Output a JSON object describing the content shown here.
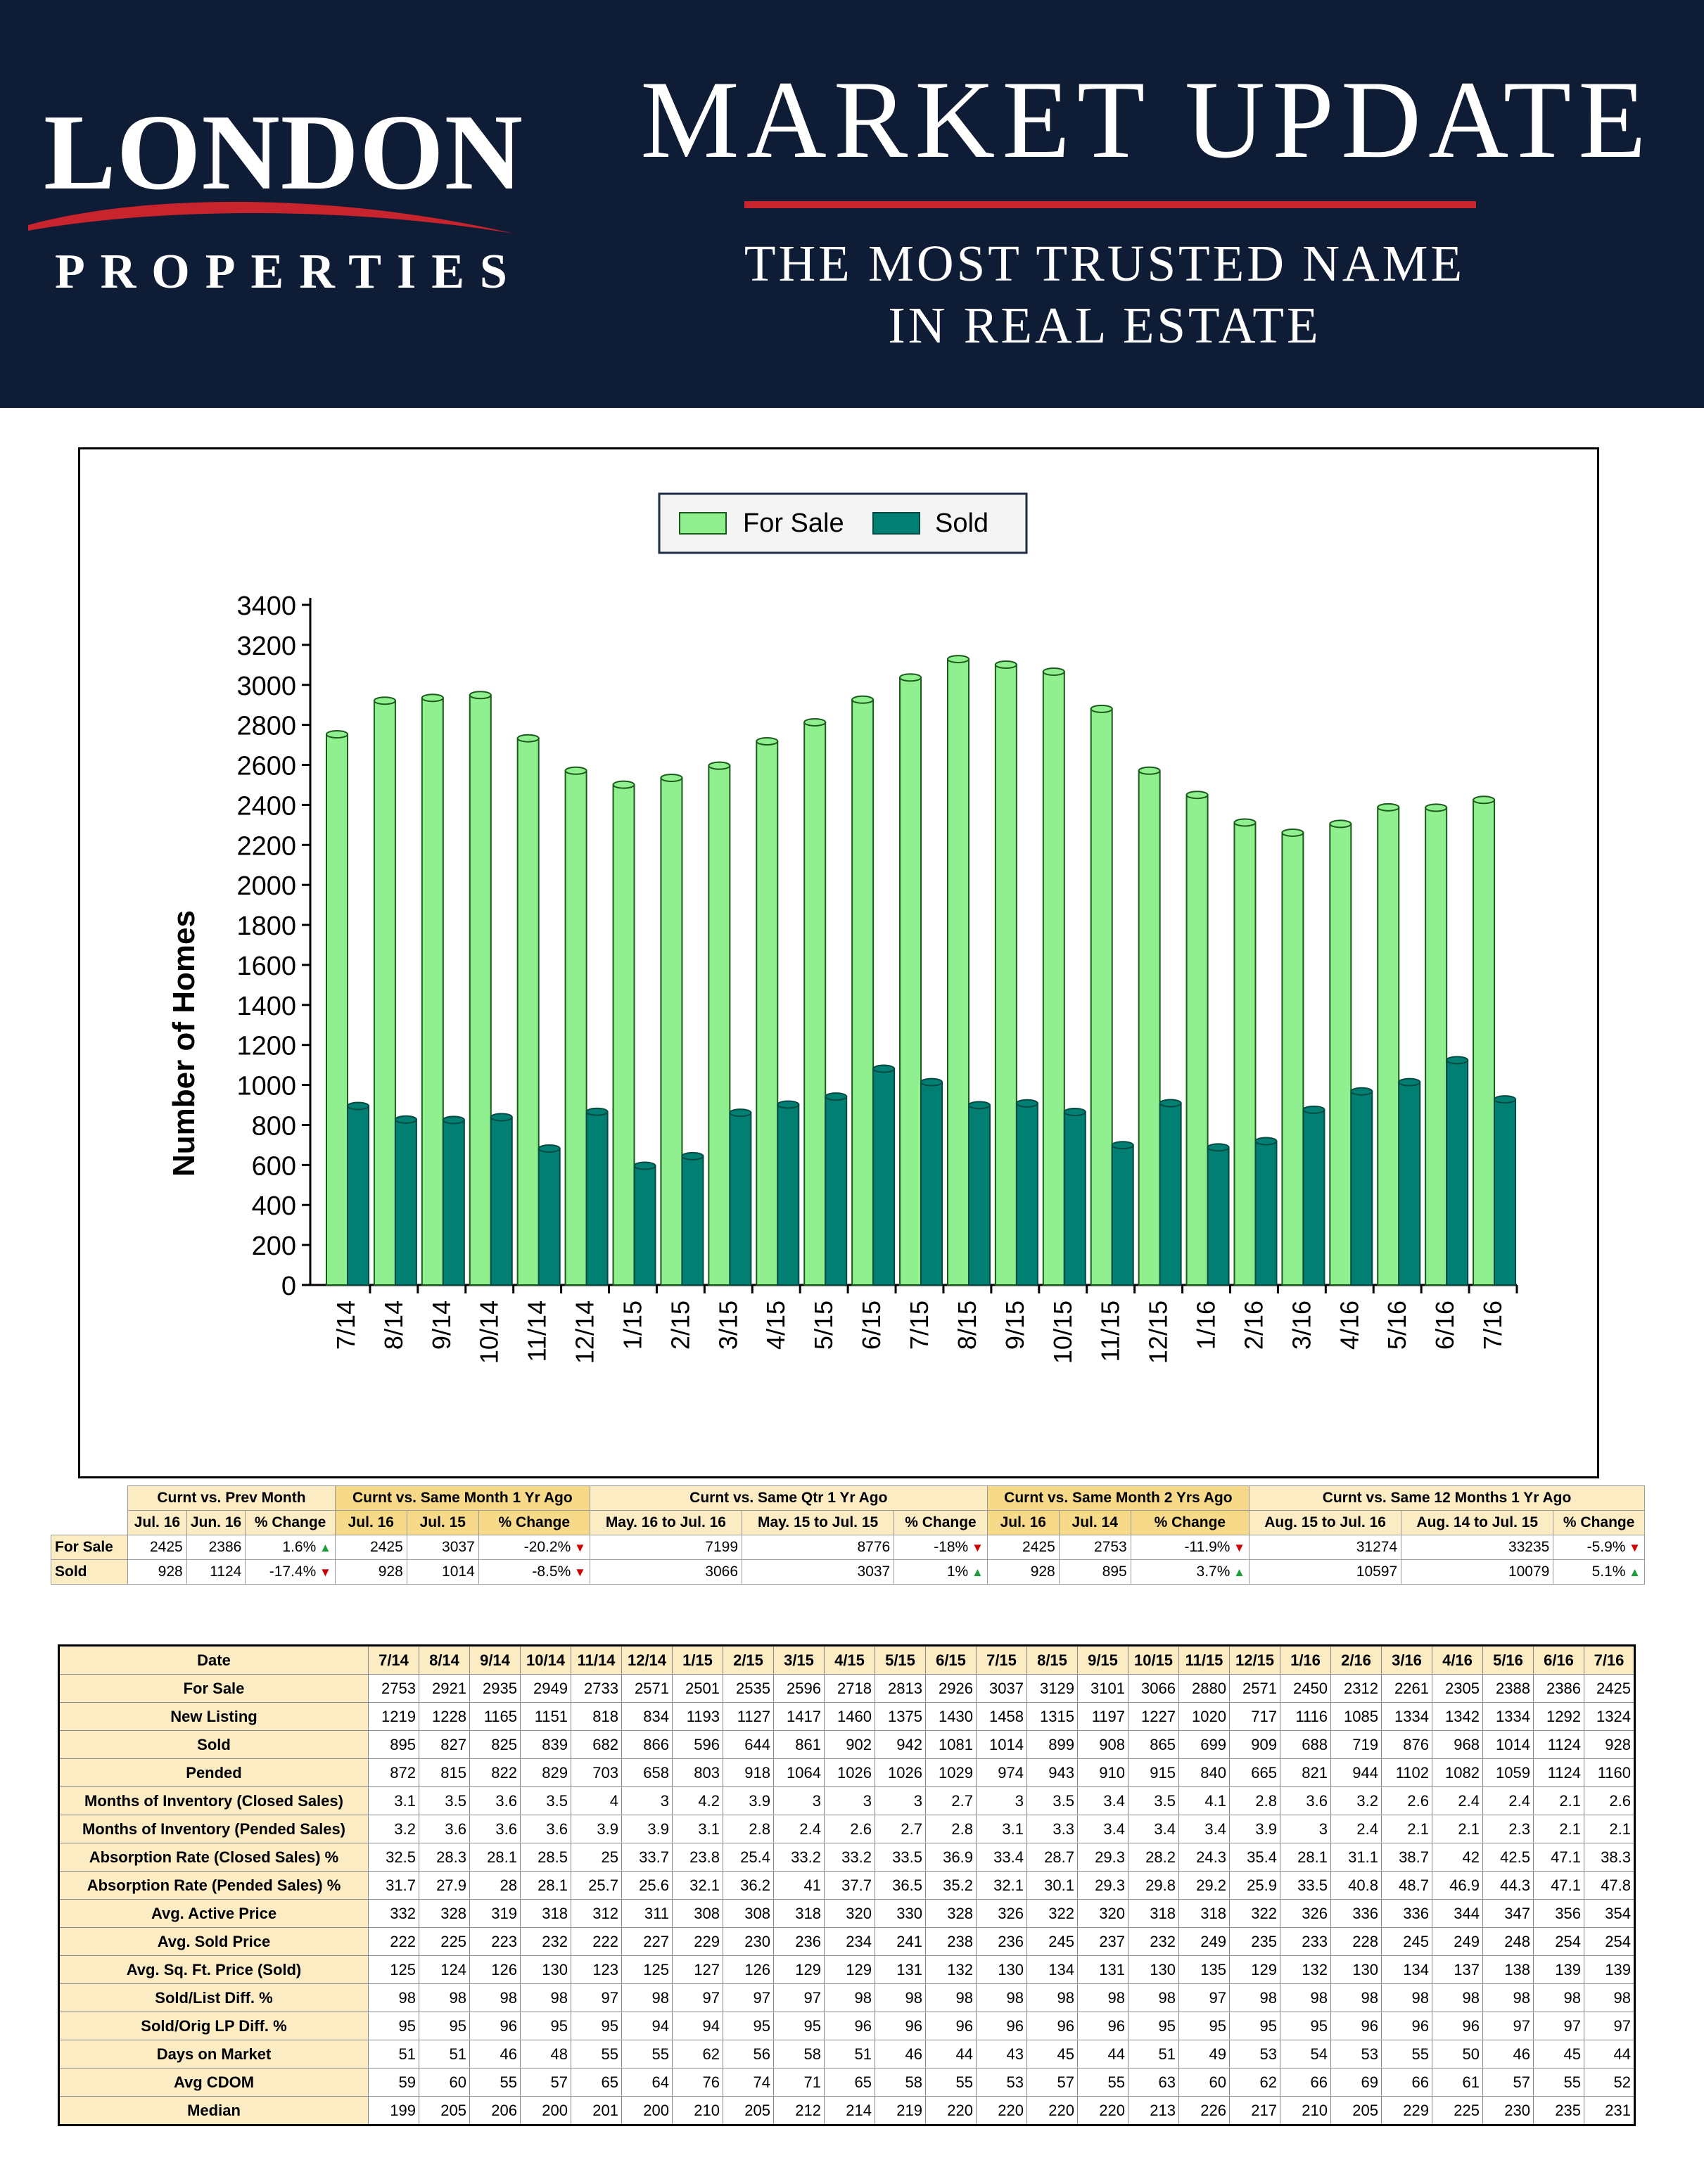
{
  "header": {
    "logo_main": "LONDON",
    "logo_sub": "PROPERTIES",
    "title": "MARKET UPDATE",
    "tagline_1": "THE MOST TRUSTED NAME",
    "tagline_2": "IN REAL ESTATE",
    "background": "#0f1c35",
    "accent": "#c8242e"
  },
  "chart_data": {
    "type": "bar",
    "categories": [
      "7/14",
      "8/14",
      "9/14",
      "10/14",
      "11/14",
      "12/14",
      "1/15",
      "2/15",
      "3/15",
      "4/15",
      "5/15",
      "6/15",
      "7/15",
      "8/15",
      "9/15",
      "10/15",
      "11/15",
      "12/15",
      "1/16",
      "2/16",
      "3/16",
      "4/16",
      "5/16",
      "6/16",
      "7/16"
    ],
    "series": [
      {
        "name": "For Sale",
        "color": "#90f090",
        "values": [
          2753,
          2921,
          2935,
          2949,
          2733,
          2571,
          2501,
          2535,
          2596,
          2718,
          2813,
          2926,
          3037,
          3129,
          3101,
          3066,
          2880,
          2571,
          2450,
          2312,
          2261,
          2305,
          2388,
          2386,
          2425
        ]
      },
      {
        "name": "Sold",
        "color": "#007f72",
        "values": [
          895,
          827,
          825,
          839,
          682,
          866,
          596,
          644,
          861,
          902,
          942,
          1081,
          1014,
          899,
          908,
          865,
          699,
          909,
          688,
          719,
          876,
          968,
          1014,
          1124,
          928
        ]
      }
    ],
    "ylabel": "Number of Homes",
    "xlabel": "",
    "ylim": [
      0,
      3400
    ],
    "yticks": [
      0,
      200,
      400,
      600,
      800,
      1000,
      1200,
      1400,
      1600,
      1800,
      2000,
      2200,
      2400,
      2600,
      2800,
      3000,
      3200,
      3400
    ],
    "legend": "top-center",
    "grid": false
  },
  "comparison": {
    "groups": [
      "Curnt vs. Prev Month",
      "Curnt vs. Same Month 1 Yr Ago",
      "Curnt vs. Same Qtr 1 Yr Ago",
      "Curnt vs. Same Month 2 Yrs Ago",
      "Curnt vs. Same 12 Months 1 Yr Ago"
    ],
    "subheaders": [
      "Jul. 16",
      "Jun. 16",
      "% Change",
      "Jul. 16",
      "Jul. 15",
      "% Change",
      "May. 16 to Jul. 16",
      "May. 15 to Jul. 15",
      "% Change",
      "Jul. 16",
      "Jul. 14",
      "% Change",
      "Aug. 15 to Jul. 16",
      "Aug. 14 to Jul. 15",
      "% Change"
    ],
    "rows": [
      {
        "label": "For Sale",
        "cells": [
          "2425",
          "2386",
          "1.6%",
          "2425",
          "3037",
          "-20.2%",
          "7199",
          "8776",
          "-18%",
          "2425",
          "2753",
          "-11.9%",
          "31274",
          "33235",
          "-5.9%"
        ],
        "arrows": [
          "up",
          "dn",
          "dn",
          "dn",
          "dn"
        ]
      },
      {
        "label": "Sold",
        "cells": [
          "928",
          "1124",
          "-17.4%",
          "928",
          "1014",
          "-8.5%",
          "3066",
          "3037",
          "1%",
          "928",
          "895",
          "3.7%",
          "10597",
          "10079",
          "5.1%"
        ],
        "arrows": [
          "dn",
          "dn",
          "up",
          "up",
          "up"
        ]
      }
    ]
  },
  "stats": {
    "date_label": "Date",
    "dates": [
      "7/14",
      "8/14",
      "9/14",
      "10/14",
      "11/14",
      "12/14",
      "1/15",
      "2/15",
      "3/15",
      "4/15",
      "5/15",
      "6/15",
      "7/15",
      "8/15",
      "9/15",
      "10/15",
      "11/15",
      "12/15",
      "1/16",
      "2/16",
      "3/16",
      "4/16",
      "5/16",
      "6/16",
      "7/16"
    ],
    "rows": [
      {
        "label": "For Sale",
        "values": [
          "2753",
          "2921",
          "2935",
          "2949",
          "2733",
          "2571",
          "2501",
          "2535",
          "2596",
          "2718",
          "2813",
          "2926",
          "3037",
          "3129",
          "3101",
          "3066",
          "2880",
          "2571",
          "2450",
          "2312",
          "2261",
          "2305",
          "2388",
          "2386",
          "2425"
        ]
      },
      {
        "label": "New Listing",
        "values": [
          "1219",
          "1228",
          "1165",
          "1151",
          "818",
          "834",
          "1193",
          "1127",
          "1417",
          "1460",
          "1375",
          "1430",
          "1458",
          "1315",
          "1197",
          "1227",
          "1020",
          "717",
          "1116",
          "1085",
          "1334",
          "1342",
          "1334",
          "1292",
          "1324"
        ]
      },
      {
        "label": "Sold",
        "values": [
          "895",
          "827",
          "825",
          "839",
          "682",
          "866",
          "596",
          "644",
          "861",
          "902",
          "942",
          "1081",
          "1014",
          "899",
          "908",
          "865",
          "699",
          "909",
          "688",
          "719",
          "876",
          "968",
          "1014",
          "1124",
          "928"
        ]
      },
      {
        "label": "Pended",
        "values": [
          "872",
          "815",
          "822",
          "829",
          "703",
          "658",
          "803",
          "918",
          "1064",
          "1026",
          "1026",
          "1029",
          "974",
          "943",
          "910",
          "915",
          "840",
          "665",
          "821",
          "944",
          "1102",
          "1082",
          "1059",
          "1124",
          "1160"
        ]
      },
      {
        "label": "Months of Inventory (Closed Sales)",
        "values": [
          "3.1",
          "3.5",
          "3.6",
          "3.5",
          "4",
          "3",
          "4.2",
          "3.9",
          "3",
          "3",
          "3",
          "2.7",
          "3",
          "3.5",
          "3.4",
          "3.5",
          "4.1",
          "2.8",
          "3.6",
          "3.2",
          "2.6",
          "2.4",
          "2.4",
          "2.1",
          "2.6"
        ]
      },
      {
        "label": "Months of Inventory (Pended Sales)",
        "values": [
          "3.2",
          "3.6",
          "3.6",
          "3.6",
          "3.9",
          "3.9",
          "3.1",
          "2.8",
          "2.4",
          "2.6",
          "2.7",
          "2.8",
          "3.1",
          "3.3",
          "3.4",
          "3.4",
          "3.4",
          "3.9",
          "3",
          "2.4",
          "2.1",
          "2.1",
          "2.3",
          "2.1",
          "2.1"
        ]
      },
      {
        "label": "Absorption Rate (Closed Sales) %",
        "values": [
          "32.5",
          "28.3",
          "28.1",
          "28.5",
          "25",
          "33.7",
          "23.8",
          "25.4",
          "33.2",
          "33.2",
          "33.5",
          "36.9",
          "33.4",
          "28.7",
          "29.3",
          "28.2",
          "24.3",
          "35.4",
          "28.1",
          "31.1",
          "38.7",
          "42",
          "42.5",
          "47.1",
          "38.3"
        ]
      },
      {
        "label": "Absorption Rate (Pended Sales) %",
        "values": [
          "31.7",
          "27.9",
          "28",
          "28.1",
          "25.7",
          "25.6",
          "32.1",
          "36.2",
          "41",
          "37.7",
          "36.5",
          "35.2",
          "32.1",
          "30.1",
          "29.3",
          "29.8",
          "29.2",
          "25.9",
          "33.5",
          "40.8",
          "48.7",
          "46.9",
          "44.3",
          "47.1",
          "47.8"
        ]
      },
      {
        "label": "Avg. Active Price",
        "values": [
          "332",
          "328",
          "319",
          "318",
          "312",
          "311",
          "308",
          "308",
          "318",
          "320",
          "330",
          "328",
          "326",
          "322",
          "320",
          "318",
          "318",
          "322",
          "326",
          "336",
          "336",
          "344",
          "347",
          "356",
          "354"
        ]
      },
      {
        "label": "Avg. Sold Price",
        "values": [
          "222",
          "225",
          "223",
          "232",
          "222",
          "227",
          "229",
          "230",
          "236",
          "234",
          "241",
          "238",
          "236",
          "245",
          "237",
          "232",
          "249",
          "235",
          "233",
          "228",
          "245",
          "249",
          "248",
          "254",
          "254"
        ]
      },
      {
        "label": "Avg. Sq. Ft. Price (Sold)",
        "values": [
          "125",
          "124",
          "126",
          "130",
          "123",
          "125",
          "127",
          "126",
          "129",
          "129",
          "131",
          "132",
          "130",
          "134",
          "131",
          "130",
          "135",
          "129",
          "132",
          "130",
          "134",
          "137",
          "138",
          "139",
          "139"
        ]
      },
      {
        "label": "Sold/List Diff. %",
        "values": [
          "98",
          "98",
          "98",
          "98",
          "97",
          "98",
          "97",
          "97",
          "97",
          "98",
          "98",
          "98",
          "98",
          "98",
          "98",
          "98",
          "97",
          "98",
          "98",
          "98",
          "98",
          "98",
          "98",
          "98",
          "98"
        ]
      },
      {
        "label": "Sold/Orig LP Diff. %",
        "values": [
          "95",
          "95",
          "96",
          "95",
          "95",
          "94",
          "94",
          "95",
          "95",
          "96",
          "96",
          "96",
          "96",
          "96",
          "96",
          "95",
          "95",
          "95",
          "95",
          "96",
          "96",
          "96",
          "97",
          "97",
          "97"
        ]
      },
      {
        "label": "Days on Market",
        "values": [
          "51",
          "51",
          "46",
          "48",
          "55",
          "55",
          "62",
          "56",
          "58",
          "51",
          "46",
          "44",
          "43",
          "45",
          "44",
          "51",
          "49",
          "53",
          "54",
          "53",
          "55",
          "50",
          "46",
          "45",
          "44"
        ]
      },
      {
        "label": "Avg CDOM",
        "values": [
          "59",
          "60",
          "55",
          "57",
          "65",
          "64",
          "76",
          "74",
          "71",
          "65",
          "58",
          "55",
          "53",
          "57",
          "55",
          "63",
          "60",
          "62",
          "66",
          "69",
          "66",
          "61",
          "57",
          "55",
          "52"
        ]
      },
      {
        "label": "Median",
        "values": [
          "199",
          "205",
          "206",
          "200",
          "201",
          "200",
          "210",
          "205",
          "212",
          "214",
          "219",
          "220",
          "220",
          "220",
          "220",
          "213",
          "226",
          "217",
          "210",
          "205",
          "229",
          "225",
          "230",
          "235",
          "231"
        ]
      }
    ]
  }
}
